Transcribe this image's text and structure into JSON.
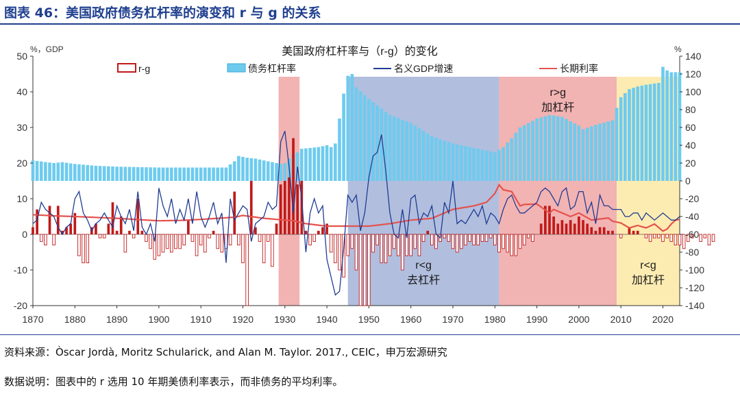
{
  "header": {
    "title": "图表 46：美国政府债务杠杆率的演变和 r 与 g 的关系"
  },
  "footer": {
    "source": "资料来源：Òscar Jordà, Moritz Schularick, and Alan M. Taylor. 2017., CEIC，申万宏源研究",
    "note": "数据说明：图表中的 r 选用 10 年期美债利率表示，而非债务的平均利率。"
  },
  "colors": {
    "header": "#1f3f8f",
    "debt": "#6ecbee",
    "rg": "#c01a1a",
    "gdp": "#1f3c92",
    "rate": "#e5524d",
    "shade_red": "#f0a6a6",
    "shade_blue": "#a3b3d8",
    "shade_yellow": "#fde9a5"
  },
  "chart_data": {
    "type": "combo",
    "title": "美国政府杠杆率与（r-g）的变化",
    "left_axis_unit": "%，GDP",
    "right_axis_unit": "%",
    "xlim": [
      1870,
      2024
    ],
    "x_ticks": [
      1870,
      1880,
      1890,
      1900,
      1910,
      1920,
      1930,
      1940,
      1950,
      1960,
      1970,
      1980,
      1990,
      2000,
      2010,
      2020
    ],
    "y_left": {
      "ticks": [
        -20,
        -10,
        0,
        10,
        20,
        30,
        40,
        50
      ],
      "ylim": [
        -20,
        50
      ]
    },
    "y_right": {
      "ticks": [
        -140,
        -120,
        -100,
        -80,
        -60,
        -40,
        -20,
        0,
        20,
        40,
        60,
        80,
        100,
        120,
        140
      ],
      "ylim": [
        -140,
        140
      ]
    },
    "legend": [
      "r-g",
      "债务杠杆率",
      "名义GDP增速",
      "长期利率"
    ],
    "regions": [
      {
        "from": 1928.5,
        "to": 1933.5,
        "color_key": "shade_red",
        "label": ""
      },
      {
        "from": 1945,
        "to": 1981,
        "color_key": "shade_blue",
        "label": "r<g\n去杠杆"
      },
      {
        "from": 1981,
        "to": 2009,
        "color_key": "shade_red",
        "label": "r>g\n加杠杆"
      },
      {
        "from": 2009,
        "to": 2024,
        "color_key": "shade_yellow",
        "label": "r<g\n加杠杆"
      }
    ],
    "debt_keys": [
      [
        1870,
        23
      ],
      [
        1875,
        20
      ],
      [
        1877,
        21
      ],
      [
        1880,
        19
      ],
      [
        1885,
        17
      ],
      [
        1890,
        16
      ],
      [
        1900,
        15
      ],
      [
        1910,
        15
      ],
      [
        1916,
        15
      ],
      [
        1918,
        22
      ],
      [
        1919,
        28
      ],
      [
        1920,
        27
      ],
      [
        1921,
        26
      ],
      [
        1923,
        25
      ],
      [
        1925,
        23
      ],
      [
        1927,
        21
      ],
      [
        1929,
        19
      ],
      [
        1930,
        20
      ],
      [
        1932,
        30
      ],
      [
        1933,
        32
      ],
      [
        1934,
        36
      ],
      [
        1936,
        37
      ],
      [
        1938,
        38
      ],
      [
        1940,
        40
      ],
      [
        1941,
        38
      ],
      [
        1942,
        42
      ],
      [
        1943,
        70
      ],
      [
        1944,
        98
      ],
      [
        1945,
        118
      ],
      [
        1946,
        120
      ],
      [
        1947,
        105
      ],
      [
        1950,
        92
      ],
      [
        1955,
        74
      ],
      [
        1960,
        65
      ],
      [
        1965,
        50
      ],
      [
        1970,
        42
      ],
      [
        1975,
        37
      ],
      [
        1980,
        32
      ],
      [
        1982,
        38
      ],
      [
        1984,
        48
      ],
      [
        1986,
        60
      ],
      [
        1990,
        70
      ],
      [
        1993,
        74
      ],
      [
        1996,
        72
      ],
      [
        2000,
        62
      ],
      [
        2001,
        58
      ],
      [
        2004,
        63
      ],
      [
        2008,
        68
      ],
      [
        2009,
        82
      ],
      [
        2010,
        94
      ],
      [
        2012,
        103
      ],
      [
        2014,
        106
      ],
      [
        2016,
        108
      ],
      [
        2019,
        110
      ],
      [
        2020,
        128
      ],
      [
        2021,
        124
      ],
      [
        2022,
        122
      ],
      [
        2024,
        122
      ]
    ],
    "rg": [
      2,
      7,
      -2,
      -3,
      8,
      -3,
      8,
      1,
      2,
      3,
      6,
      -6,
      -8,
      -8,
      2,
      3,
      -1,
      -1,
      3,
      9,
      1,
      5,
      -5,
      1,
      -1,
      10,
      1,
      -2,
      -4,
      -7,
      -6,
      -5,
      -4,
      -5,
      -4,
      -4,
      -3,
      4,
      -2,
      -6,
      -3,
      -5,
      -1,
      1,
      -4,
      -5,
      -4,
      -3,
      0,
      -3,
      -8,
      -20,
      -20,
      2,
      -2,
      -8,
      -2,
      -9,
      3,
      -2,
      1,
      4,
      12,
      20,
      15,
      1,
      -3,
      -2,
      1,
      2,
      3,
      -5,
      -8,
      -10,
      -12,
      -6,
      -4,
      -10,
      -20,
      -20,
      -20,
      -5,
      -3,
      -8,
      -8,
      -6,
      -4,
      -6,
      -10,
      -6,
      -6,
      -4,
      -6,
      -2,
      1,
      -3,
      -4,
      -2,
      -1,
      -2,
      -4,
      -5,
      -4,
      -3,
      -2,
      -3,
      -3,
      -2,
      -2,
      -1,
      -3,
      -5,
      -4,
      -5,
      -6,
      -6,
      -4,
      -3,
      -1,
      -2,
      0,
      3,
      8,
      8,
      5,
      3,
      4,
      3,
      4,
      3,
      5,
      4,
      3,
      2,
      1,
      2,
      2,
      1,
      1,
      0,
      -1,
      0,
      2,
      1,
      1,
      0,
      -1,
      -2,
      -1,
      -1,
      -2,
      -1,
      -2,
      -3,
      -3,
      -4,
      -2,
      -1,
      0,
      -2,
      -1,
      -3,
      -2
    ],
    "rg_spikes": [
      [
        1918,
        12
      ],
      [
        1922,
        15
      ],
      [
        1929,
        14
      ],
      [
        1930,
        15
      ],
      [
        1931,
        16
      ],
      [
        1932,
        27
      ],
      [
        1933,
        14
      ]
    ],
    "gdp": [
      3,
      4,
      9,
      7,
      6,
      5,
      2,
      0,
      2,
      3,
      10,
      12,
      6,
      4,
      1,
      3,
      4,
      6,
      4,
      2,
      8,
      5,
      3,
      7,
      1,
      12,
      2,
      0,
      3,
      -2,
      13,
      8,
      5,
      10,
      3,
      7,
      4,
      10,
      3,
      12,
      5,
      2,
      5,
      9,
      3,
      6,
      -8,
      10,
      4,
      6,
      8,
      7,
      -2,
      3,
      4,
      5,
      9,
      7,
      8,
      26,
      29,
      19,
      6,
      19,
      10,
      -5,
      6,
      10,
      6,
      8,
      -7,
      -12,
      -17,
      -16,
      -4,
      11,
      9,
      11,
      1,
      6,
      16,
      22,
      23,
      28,
      18,
      6,
      0,
      -1,
      7,
      -1,
      10,
      11,
      3,
      6,
      5,
      8,
      0,
      -1,
      9,
      6,
      15,
      3,
      4,
      3,
      5,
      7,
      5,
      8,
      3,
      6,
      5,
      3,
      7,
      10,
      11,
      8,
      6,
      6,
      7,
      8,
      9,
      12,
      13,
      12,
      10,
      8,
      12,
      13,
      7,
      8,
      12,
      12,
      6,
      9,
      3,
      11,
      8,
      8,
      7,
      7,
      7,
      5,
      5,
      6,
      6,
      4,
      6,
      5,
      4,
      5,
      6,
      5,
      4,
      4,
      5,
      6,
      4,
      3,
      4,
      5,
      6,
      6,
      5,
      4,
      4,
      3,
      4,
      -2,
      4,
      4,
      4,
      4,
      4,
      3,
      3,
      4,
      4,
      4,
      -1,
      10,
      9,
      6,
      5
    ],
    "rate_keys": [
      [
        1870,
        5.5
      ],
      [
        1875,
        5.2
      ],
      [
        1880,
        5
      ],
      [
        1890,
        4.5
      ],
      [
        1897,
        4
      ],
      [
        1900,
        3.8
      ],
      [
        1905,
        3.9
      ],
      [
        1910,
        4.2
      ],
      [
        1918,
        4.8
      ],
      [
        1920,
        5.3
      ],
      [
        1925,
        4.5
      ],
      [
        1929,
        4.1
      ],
      [
        1932,
        3.8
      ],
      [
        1935,
        3
      ],
      [
        1940,
        2.3
      ],
      [
        1945,
        2.3
      ],
      [
        1950,
        2.3
      ],
      [
        1955,
        3
      ],
      [
        1960,
        4
      ],
      [
        1965,
        4.5
      ],
      [
        1970,
        7
      ],
      [
        1975,
        8
      ],
      [
        1978,
        9
      ],
      [
        1980,
        11.5
      ],
      [
        1981,
        13.9
      ],
      [
        1982,
        12.5
      ],
      [
        1984,
        12
      ],
      [
        1986,
        8
      ],
      [
        1987,
        8.4
      ],
      [
        1990,
        8.5
      ],
      [
        1993,
        6
      ],
      [
        1994,
        7
      ],
      [
        1998,
        5
      ],
      [
        2000,
        6
      ],
      [
        2003,
        4
      ],
      [
        2007,
        4.6
      ],
      [
        2008,
        3.7
      ],
      [
        2010,
        3.2
      ],
      [
        2012,
        1.8
      ],
      [
        2014,
        2.5
      ],
      [
        2016,
        1.8
      ],
      [
        2018,
        2.9
      ],
      [
        2020,
        0.9
      ],
      [
        2021,
        1.5
      ],
      [
        2022,
        2.9
      ],
      [
        2023,
        4
      ],
      [
        2024,
        4.2
      ]
    ],
    "annotations": [
      "r>g\n加杠杆",
      "r<g\n去杠杆",
      "r<g\n加杠杆"
    ]
  }
}
